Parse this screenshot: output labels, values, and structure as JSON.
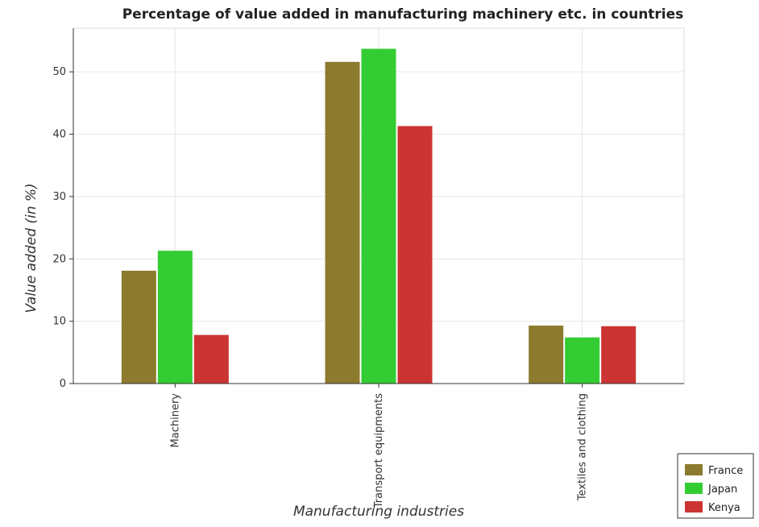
{
  "chart_data": {
    "type": "bar",
    "title": "Percentage of value added in manufacturing machinery etc. in countries",
    "xlabel": "Manufacturing industries",
    "ylabel": "Value added (in %)",
    "categories": [
      "Machinery",
      "Transport equipments",
      "Textiles and clothing"
    ],
    "series": [
      {
        "name": "France",
        "color": "#8c7a2e",
        "values": [
          18.1,
          51.6,
          9.3
        ]
      },
      {
        "name": "Japan",
        "color": "#33cc33",
        "values": [
          21.3,
          53.7,
          7.4
        ]
      },
      {
        "name": "Kenya",
        "color": "#cc3333",
        "values": [
          7.8,
          41.3,
          9.2
        ]
      }
    ],
    "ylim": [
      0,
      57
    ],
    "yticks": [
      0,
      10,
      20,
      30,
      40,
      50
    ],
    "grid": true,
    "legend": "bottom-right"
  }
}
